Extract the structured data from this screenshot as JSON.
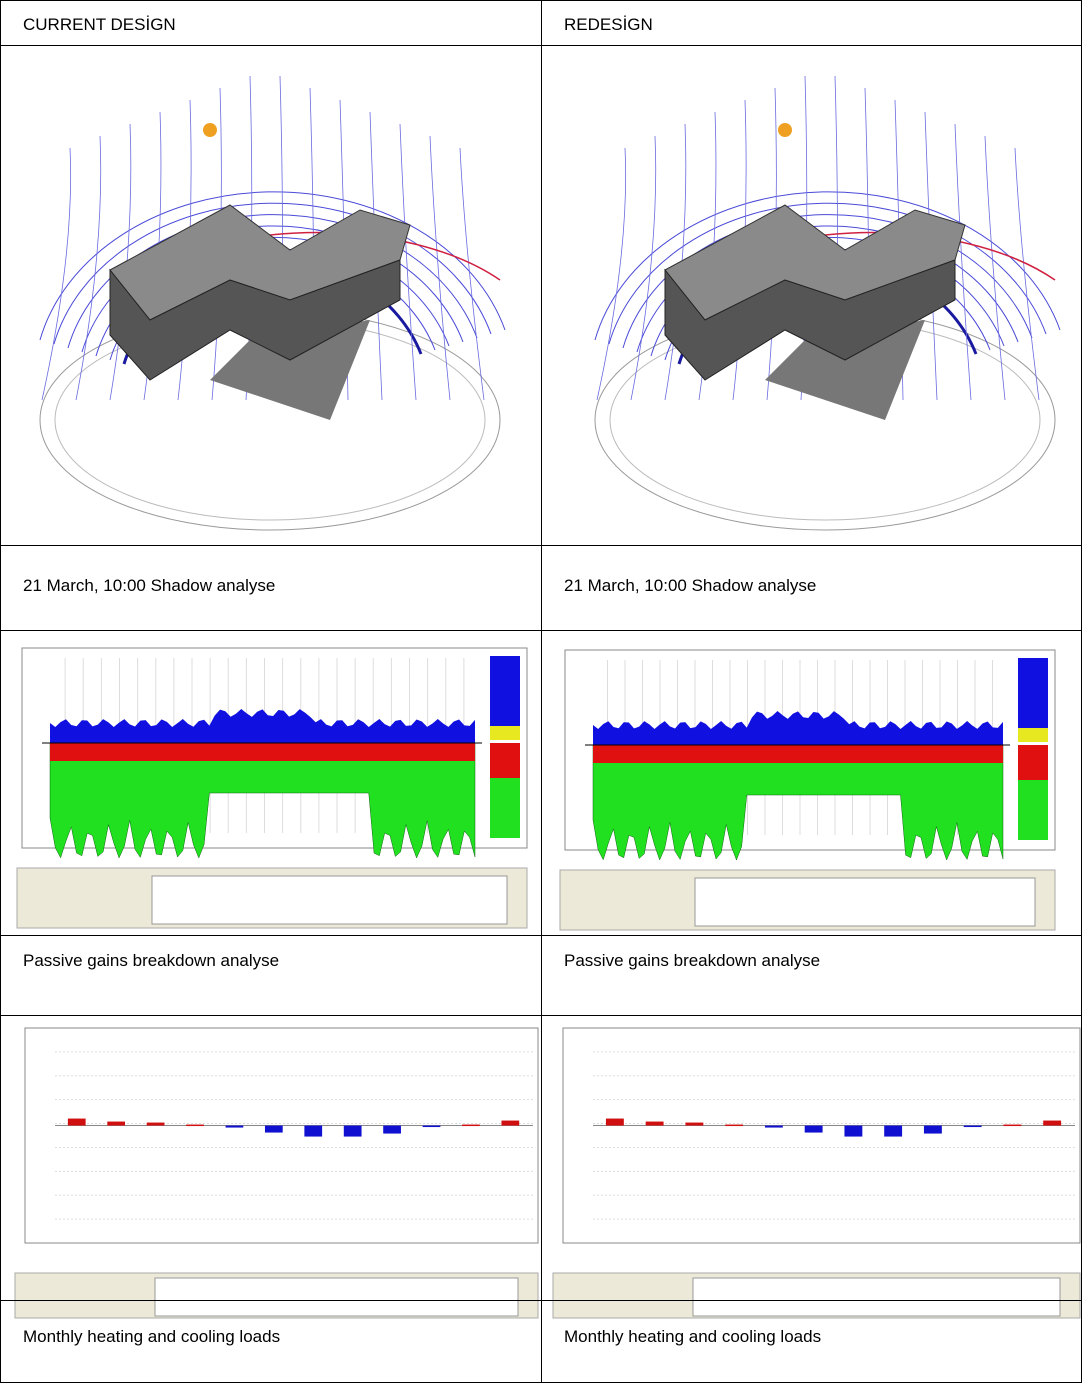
{
  "table": {
    "header": [
      "CURRENT DESİGN",
      "REDESİGN"
    ],
    "rows": [
      [
        "21 March, 10:00 Shadow analyse",
        "21 March, 10:00 Shadow analyse"
      ],
      [
        "Passive gains breakdown analyse",
        "Passive gains breakdown analyse"
      ],
      [
        "Monthly heating and cooling loads",
        "Monthly heating and cooling loads"
      ]
    ]
  }
}
